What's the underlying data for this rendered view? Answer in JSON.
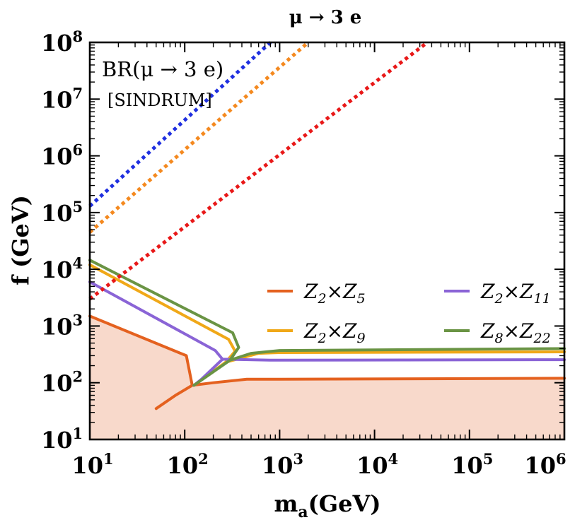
{
  "chart_data": {
    "type": "line",
    "title": "μ → 3 e",
    "xlabel": "m",
    "xlabel_sub": "a",
    "xlabel_unit": "(GeV)",
    "ylabel": "f (GeV)",
    "x_scale": "log10",
    "y_scale": "log10",
    "xlim": [
      10,
      1000000
    ],
    "ylim": [
      10,
      100000000
    ],
    "x_ticks": [
      {
        "value": 10,
        "base": "10",
        "exp": "1"
      },
      {
        "value": 100,
        "base": "10",
        "exp": "2"
      },
      {
        "value": 1000,
        "base": "10",
        "exp": "3"
      },
      {
        "value": 10000,
        "base": "10",
        "exp": "4"
      },
      {
        "value": 100000,
        "base": "10",
        "exp": "5"
      },
      {
        "value": 1000000,
        "base": "10",
        "exp": "6"
      }
    ],
    "y_ticks": [
      {
        "value": 10,
        "base": "10",
        "exp": "1"
      },
      {
        "value": 100,
        "base": "10",
        "exp": "2"
      },
      {
        "value": 1000,
        "base": "10",
        "exp": "3"
      },
      {
        "value": 10000,
        "base": "10",
        "exp": "4"
      },
      {
        "value": 100000,
        "base": "10",
        "exp": "5"
      },
      {
        "value": 1000000,
        "base": "10",
        "exp": "6"
      },
      {
        "value": 10000000,
        "base": "10",
        "exp": "7"
      },
      {
        "value": 100000000,
        "base": "10",
        "exp": "8"
      }
    ],
    "annotation": {
      "line1": "BR(μ → 3 e)",
      "line2": "[SINDRUM]"
    },
    "shaded_region": {
      "name": "excluded",
      "color": "#f8d9cb",
      "boundary": [
        [
          10,
          1500
        ],
        [
          104,
          300
        ],
        [
          120,
          90
        ],
        [
          200,
          100
        ],
        [
          450,
          115
        ],
        [
          1000,
          115
        ],
        [
          1000000,
          120
        ]
      ]
    },
    "series": [
      {
        "name": "Z2×Z5",
        "label_main": [
          "Z",
          "×Z"
        ],
        "label_sub": [
          "2",
          "5"
        ],
        "color": "#e4611f",
        "dashed": false,
        "points": [
          [
            10,
            1500
          ],
          [
            104,
            300
          ],
          [
            120,
            90
          ],
          [
            80,
            60
          ],
          [
            50,
            35
          ],
          [
            null,
            null
          ],
          [
            120,
            90
          ],
          [
            200,
            100
          ],
          [
            450,
            115
          ],
          [
            1000,
            115
          ],
          [
            1000000,
            120
          ]
        ]
      },
      {
        "name": "Z2×Z9",
        "label_main": [
          "Z",
          "×Z"
        ],
        "label_sub": [
          "2",
          "9"
        ],
        "color": "#f0a818",
        "dashed": false,
        "points": [
          [
            10,
            12000
          ],
          [
            290,
            580
          ],
          [
            340,
            360
          ],
          [
            270,
            230
          ],
          [
            125,
            90
          ],
          [
            null,
            null
          ],
          [
            270,
            230
          ],
          [
            600,
            330
          ],
          [
            1000,
            340
          ],
          [
            1000000,
            350
          ]
        ]
      },
      {
        "name": "Z2×Z11",
        "label_main": [
          "Z",
          "×Z"
        ],
        "label_sub": [
          "2",
          "11"
        ],
        "color": "#8a64d6",
        "dashed": false,
        "points": [
          [
            10,
            6000
          ],
          [
            210,
            370
          ],
          [
            250,
            260
          ],
          [
            150,
            115
          ],
          [
            125,
            90
          ],
          [
            null,
            null
          ],
          [
            250,
            260
          ],
          [
            800,
            250
          ],
          [
            1000,
            250
          ],
          [
            1000000,
            255
          ]
        ]
      },
      {
        "name": "Z8×Z22",
        "label_main": [
          "Z",
          "×Z"
        ],
        "label_sub": [
          "8",
          "22"
        ],
        "color": "#6a9444",
        "dashed": false,
        "points": [
          [
            10,
            14500
          ],
          [
            320,
            760
          ],
          [
            370,
            420
          ],
          [
            300,
            250
          ],
          [
            125,
            90
          ],
          [
            null,
            null
          ],
          [
            300,
            250
          ],
          [
            500,
            330
          ],
          [
            1000,
            370
          ],
          [
            1000000,
            400
          ]
        ]
      },
      {
        "name": "blue-dotted",
        "color": "#1f2fe0",
        "dashed": true,
        "points": [
          [
            10,
            130000
          ],
          [
            800,
            100000000
          ]
        ]
      },
      {
        "name": "orange-dotted",
        "color": "#f4891f",
        "dashed": true,
        "points": [
          [
            10,
            45000
          ],
          [
            2000,
            100000000
          ]
        ]
      },
      {
        "name": "red-dotted",
        "color": "#e81818",
        "dashed": true,
        "points": [
          [
            10,
            3000
          ],
          [
            36000,
            100000000
          ]
        ]
      }
    ],
    "legend": {
      "position": "center-right",
      "columns": 2,
      "order": [
        "Z2×Z5",
        "Z2×Z11",
        "Z2×Z9",
        "Z8×Z22"
      ]
    }
  }
}
